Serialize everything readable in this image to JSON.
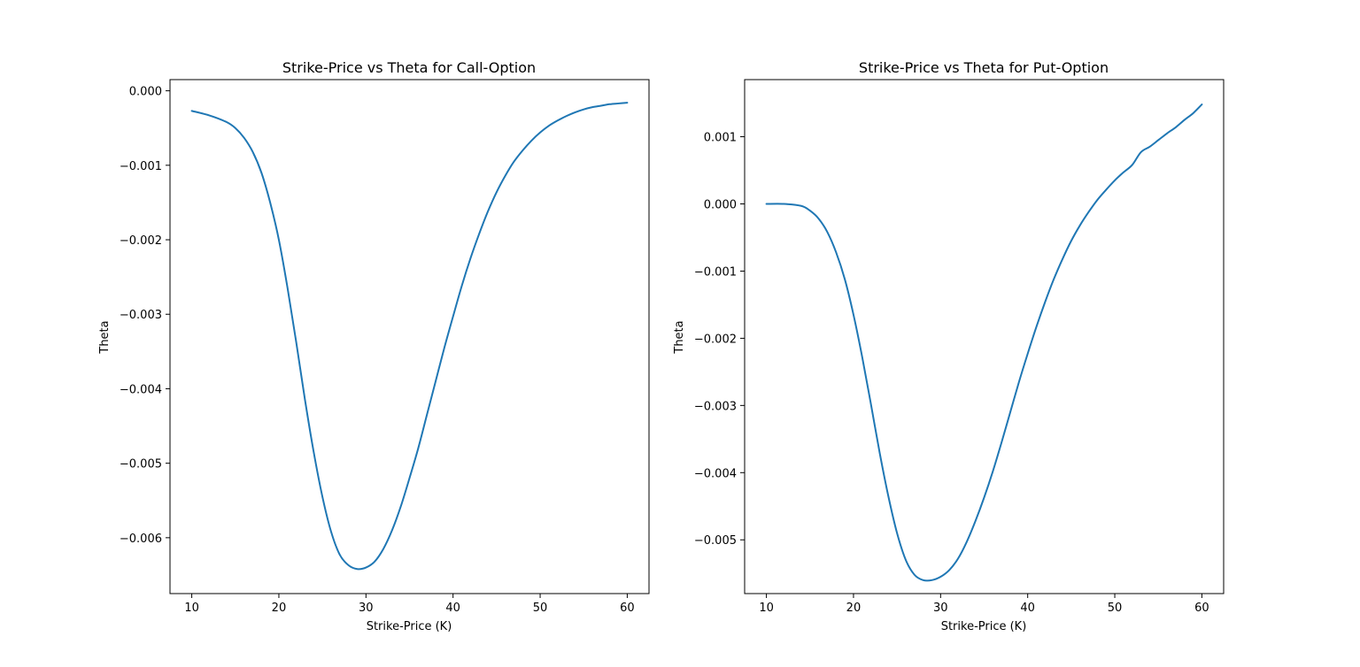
{
  "chart_data": [
    {
      "type": "line",
      "title": "Strike-Price vs Theta for Call-Option",
      "xlabel": "Strike-Price (K)",
      "ylabel": "Theta",
      "xlim": [
        7.5,
        62.5
      ],
      "ylim": [
        -0.00675,
        0.00015
      ],
      "xticks": [
        10,
        20,
        30,
        40,
        50,
        60
      ],
      "xtick_labels": [
        "10",
        "20",
        "30",
        "40",
        "50",
        "60"
      ],
      "yticks": [
        0.0,
        -0.001,
        -0.002,
        -0.003,
        -0.004,
        -0.005,
        -0.006
      ],
      "ytick_labels": [
        "0.000",
        "−0.001",
        "−0.002",
        "−0.003",
        "−0.004",
        "−0.005",
        "−0.006"
      ],
      "grid": false,
      "series": [
        {
          "color": "#1f77b4",
          "x": [
            10,
            12,
            14,
            15,
            16,
            17,
            18,
            19,
            20,
            21,
            22,
            23,
            24,
            25,
            26,
            27,
            28,
            29,
            30,
            31,
            32,
            33,
            34,
            35,
            36,
            37,
            38,
            39,
            40,
            41,
            42,
            43,
            44,
            45,
            46,
            47,
            48,
            49,
            50,
            51,
            52,
            53,
            54,
            55,
            56,
            57,
            58,
            59,
            60
          ],
          "y": [
            -0.00027,
            -0.00033,
            -0.00042,
            -0.0005,
            -0.00063,
            -0.00082,
            -0.0011,
            -0.0015,
            -0.002,
            -0.00265,
            -0.00338,
            -0.00415,
            -0.00485,
            -0.00545,
            -0.00592,
            -0.00623,
            -0.00637,
            -0.00642,
            -0.0064,
            -0.00632,
            -0.00615,
            -0.0059,
            -0.00558,
            -0.0052,
            -0.0048,
            -0.00435,
            -0.0039,
            -0.00345,
            -0.00303,
            -0.00262,
            -0.00225,
            -0.00192,
            -0.00162,
            -0.00136,
            -0.00114,
            -0.00095,
            -0.0008,
            -0.00067,
            -0.00056,
            -0.00047,
            -0.0004,
            -0.00034,
            -0.00029,
            -0.00025,
            -0.00022,
            -0.0002,
            -0.00018,
            -0.00017,
            -0.00016
          ]
        }
      ]
    },
    {
      "type": "line",
      "title": "Strike-Price vs Theta for Put-Option",
      "xlabel": "Strike-Price (K)",
      "ylabel": "Theta",
      "xlim": [
        7.5,
        62.5
      ],
      "ylim": [
        -0.0058,
        0.00185
      ],
      "xticks": [
        10,
        20,
        30,
        40,
        50,
        60
      ],
      "xtick_labels": [
        "10",
        "20",
        "30",
        "40",
        "50",
        "60"
      ],
      "yticks": [
        0.001,
        0.0,
        -0.001,
        -0.002,
        -0.003,
        -0.004,
        -0.005
      ],
      "ytick_labels": [
        "0.001",
        "0.000",
        "−0.001",
        "−0.002",
        "−0.003",
        "−0.004",
        "−0.005"
      ],
      "grid": false,
      "series": [
        {
          "color": "#1f77b4",
          "x": [
            10,
            12,
            14,
            15,
            16,
            17,
            18,
            19,
            20,
            21,
            22,
            23,
            24,
            25,
            26,
            27,
            28,
            29,
            30,
            31,
            32,
            33,
            34,
            35,
            36,
            37,
            38,
            39,
            40,
            41,
            42,
            43,
            44,
            45,
            46,
            47,
            48,
            49,
            50,
            51,
            52,
            53,
            54,
            55,
            56,
            57,
            58,
            59,
            60
          ],
          "y": [
            0.0,
            0.0,
            -3e-05,
            -0.0001,
            -0.00022,
            -0.00042,
            -0.00072,
            -0.00112,
            -0.00165,
            -0.00228,
            -0.00298,
            -0.0037,
            -0.00435,
            -0.0049,
            -0.0053,
            -0.00552,
            -0.0056,
            -0.0056,
            -0.00555,
            -0.00545,
            -0.00528,
            -0.00503,
            -0.00472,
            -0.00437,
            -0.00398,
            -0.00355,
            -0.0031,
            -0.00265,
            -0.00223,
            -0.00183,
            -0.00146,
            -0.00112,
            -0.00082,
            -0.00055,
            -0.00032,
            -0.00012,
            6e-05,
            0.00021,
            0.00035,
            0.00047,
            0.00058,
            0.00077,
            0.00085,
            0.00095,
            0.00105,
            0.00114,
            0.00125,
            0.00135,
            0.00148
          ]
        }
      ]
    }
  ]
}
